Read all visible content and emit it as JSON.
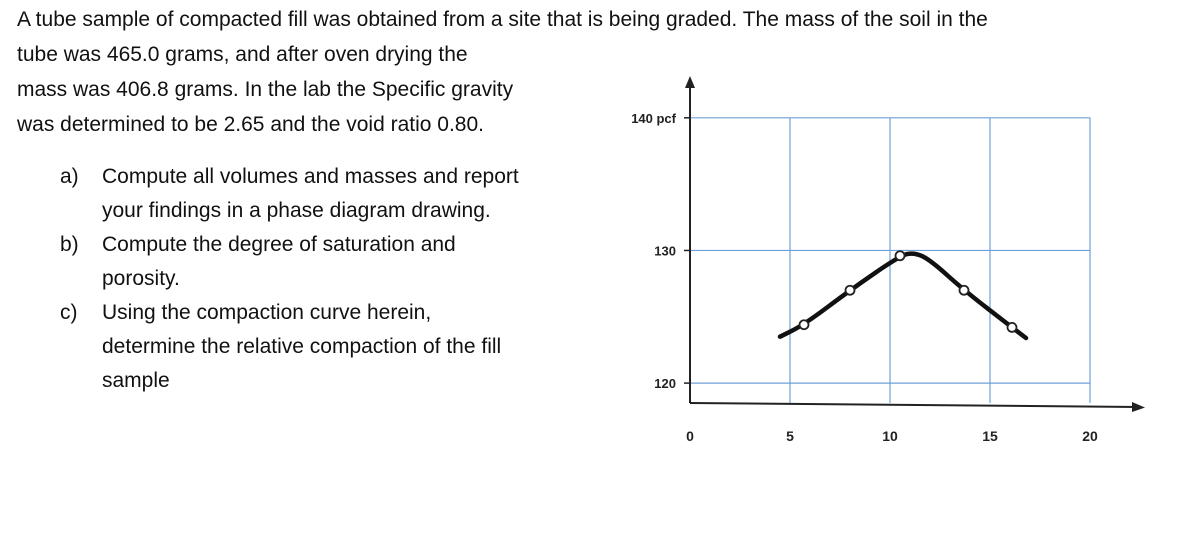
{
  "problem": {
    "line1": "A tube sample of compacted fill was obtained from a site that is being graded. The mass of the soil in the",
    "line2": "tube was 465.0 grams, and after oven drying the",
    "line3": "mass was 406.8 grams. In the lab the Specific gravity",
    "line4": "was determined to be 2.65 and the void ratio 0.80."
  },
  "questions": [
    {
      "label": "a)",
      "line1": "Compute all volumes and masses and report",
      "line2": "your findings in a phase diagram drawing."
    },
    {
      "label": "b)",
      "line1": "Compute the degree of saturation and",
      "line2": "porosity."
    },
    {
      "label": "c)",
      "line1": "Using the compaction curve herein,",
      "line2": "determine the relative compaction of the fill",
      "line3": "sample"
    }
  ],
  "chart_data": {
    "type": "line",
    "x_ticks": [
      "0",
      "5",
      "10",
      "15",
      "20"
    ],
    "y_ticks": [
      "120",
      "130",
      "140 pcf"
    ],
    "xlim": [
      0,
      20
    ],
    "ylim": [
      118.5,
      143
    ],
    "grid": true,
    "colors": {
      "grid": "#6fa0d8",
      "curve": "#111111"
    },
    "series": [
      {
        "points": [
          [
            5.7,
            124.4
          ],
          [
            8.0,
            127.0
          ],
          [
            10.5,
            129.6
          ],
          [
            13.7,
            127.0
          ],
          [
            16.1,
            124.2
          ]
        ],
        "curve": [
          [
            4.5,
            123.5
          ],
          [
            5.7,
            124.4
          ],
          [
            8.0,
            127.0
          ],
          [
            10.5,
            129.6
          ],
          [
            11.2,
            129.85
          ],
          [
            12.0,
            129.3
          ],
          [
            13.7,
            127.0
          ],
          [
            16.1,
            124.2
          ],
          [
            16.8,
            123.4
          ]
        ]
      }
    ]
  }
}
